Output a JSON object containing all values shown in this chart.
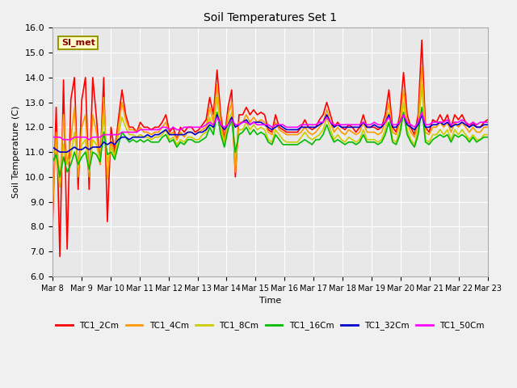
{
  "title": "Soil Temperatures Set 1",
  "xlabel": "Time",
  "ylabel": "Soil Temperature (C)",
  "ylim": [
    6.0,
    16.0
  ],
  "yticks": [
    6.0,
    7.0,
    8.0,
    9.0,
    10.0,
    11.0,
    12.0,
    13.0,
    14.0,
    15.0,
    16.0
  ],
  "xtick_labels": [
    "Mar 8",
    "Mar 9",
    "Mar 10",
    "Mar 11",
    "Mar 12",
    "Mar 13",
    "Mar 14",
    "Mar 15",
    "Mar 16",
    "Mar 17",
    "Mar 18",
    "Mar 19",
    "Mar 20",
    "Mar 21",
    "Mar 22",
    "Mar 23"
  ],
  "annotation": "SI_met",
  "bg_color": "#e8e8e8",
  "grid_color": "#ffffff",
  "colors": [
    "#ff0000",
    "#ff9900",
    "#cccc00",
    "#00bb00",
    "#0000cc",
    "#ff00ff"
  ],
  "series_names": [
    "TC1_2Cm",
    "TC1_4Cm",
    "TC1_8Cm",
    "TC1_16Cm",
    "TC1_32Cm",
    "TC1_50Cm"
  ],
  "lw": 1.2,
  "TC1_2Cm": [
    8.0,
    12.8,
    6.8,
    13.9,
    7.1,
    13.1,
    14.0,
    9.5,
    13.1,
    14.0,
    9.5,
    14.0,
    12.4,
    10.5,
    14.0,
    8.2,
    12.0,
    11.0,
    12.3,
    13.5,
    12.5,
    12.0,
    12.0,
    11.8,
    12.2,
    12.0,
    12.0,
    11.9,
    12.0,
    12.0,
    12.2,
    12.5,
    11.8,
    12.0,
    11.5,
    12.0,
    11.8,
    12.0,
    12.0,
    11.8,
    11.9,
    12.1,
    12.3,
    13.2,
    12.5,
    14.3,
    12.5,
    11.5,
    12.8,
    13.5,
    10.0,
    12.5,
    12.5,
    12.8,
    12.5,
    12.7,
    12.5,
    12.6,
    12.5,
    11.9,
    11.8,
    12.5,
    12.0,
    11.9,
    11.8,
    11.8,
    11.8,
    11.8,
    12.0,
    12.3,
    12.0,
    11.9,
    12.0,
    12.3,
    12.5,
    13.0,
    12.5,
    12.0,
    12.2,
    12.0,
    11.9,
    12.1,
    12.0,
    11.8,
    12.0,
    12.5,
    12.0,
    12.0,
    12.0,
    11.9,
    12.0,
    12.5,
    13.5,
    12.0,
    11.8,
    12.5,
    14.2,
    12.5,
    12.0,
    11.7,
    12.5,
    15.5,
    12.0,
    11.8,
    12.3,
    12.2,
    12.5,
    12.2,
    12.5,
    12.0,
    12.5,
    12.3,
    12.5,
    12.2,
    12.0,
    12.2,
    12.0,
    12.0,
    12.2,
    12.3
  ],
  "TC1_4Cm": [
    8.6,
    11.8,
    9.7,
    12.5,
    10.5,
    11.5,
    12.8,
    10.0,
    12.0,
    12.5,
    10.0,
    12.5,
    11.8,
    10.5,
    13.2,
    9.9,
    11.5,
    10.8,
    12.0,
    13.0,
    12.3,
    11.9,
    11.9,
    11.8,
    12.0,
    11.8,
    11.8,
    11.7,
    11.8,
    11.8,
    12.0,
    12.2,
    11.7,
    11.8,
    11.5,
    11.8,
    11.6,
    11.8,
    11.8,
    11.7,
    11.8,
    11.9,
    12.0,
    12.8,
    12.2,
    13.7,
    12.2,
    11.4,
    12.5,
    13.0,
    10.2,
    12.2,
    12.2,
    12.5,
    12.2,
    12.4,
    12.2,
    12.3,
    12.2,
    11.8,
    11.7,
    12.2,
    11.9,
    11.8,
    11.7,
    11.7,
    11.7,
    11.7,
    11.8,
    12.0,
    11.8,
    11.7,
    11.8,
    12.0,
    12.2,
    12.7,
    12.2,
    11.8,
    12.0,
    11.8,
    11.7,
    11.9,
    11.8,
    11.7,
    11.8,
    12.2,
    11.8,
    11.8,
    11.8,
    11.7,
    11.8,
    12.2,
    13.0,
    11.8,
    11.7,
    12.2,
    13.5,
    12.2,
    11.8,
    11.6,
    12.2,
    14.4,
    11.8,
    11.7,
    12.0,
    12.0,
    12.2,
    12.0,
    12.2,
    11.8,
    12.2,
    12.0,
    12.2,
    12.0,
    11.8,
    12.0,
    11.8,
    11.8,
    12.0,
    12.0
  ],
  "TC1_8Cm": [
    11.0,
    11.0,
    9.6,
    11.3,
    10.5,
    10.8,
    11.8,
    10.4,
    11.3,
    11.5,
    10.2,
    11.5,
    11.3,
    10.6,
    12.5,
    10.6,
    11.2,
    10.8,
    11.7,
    12.4,
    12.0,
    11.7,
    11.7,
    11.6,
    11.7,
    11.6,
    11.6,
    11.5,
    11.6,
    11.6,
    11.7,
    11.9,
    11.5,
    11.6,
    11.3,
    11.5,
    11.4,
    11.6,
    11.6,
    11.5,
    11.5,
    11.7,
    11.8,
    12.4,
    11.9,
    13.2,
    11.9,
    11.3,
    12.2,
    12.6,
    10.8,
    11.9,
    11.9,
    12.2,
    11.9,
    12.1,
    11.9,
    12.0,
    11.9,
    11.5,
    11.4,
    11.9,
    11.7,
    11.5,
    11.4,
    11.4,
    11.4,
    11.4,
    11.6,
    11.8,
    11.6,
    11.5,
    11.6,
    11.7,
    11.9,
    12.4,
    11.9,
    11.5,
    11.7,
    11.5,
    11.4,
    11.6,
    11.5,
    11.4,
    11.5,
    11.9,
    11.5,
    11.5,
    11.5,
    11.4,
    11.5,
    11.9,
    12.6,
    11.5,
    11.4,
    11.9,
    13.0,
    11.9,
    11.5,
    11.3,
    11.9,
    13.7,
    11.5,
    11.4,
    11.7,
    11.7,
    11.9,
    11.7,
    11.9,
    11.5,
    11.9,
    11.7,
    11.9,
    11.7,
    11.5,
    11.7,
    11.5,
    11.5,
    11.7,
    11.7
  ],
  "TC1_16Cm": [
    10.6,
    10.9,
    10.0,
    10.8,
    10.2,
    10.5,
    11.0,
    10.5,
    10.8,
    11.0,
    10.3,
    11.0,
    10.9,
    10.6,
    11.8,
    10.9,
    11.0,
    10.7,
    11.3,
    11.8,
    11.6,
    11.4,
    11.5,
    11.4,
    11.5,
    11.4,
    11.5,
    11.4,
    11.4,
    11.4,
    11.6,
    11.7,
    11.4,
    11.5,
    11.2,
    11.4,
    11.3,
    11.5,
    11.5,
    11.4,
    11.4,
    11.5,
    11.6,
    12.0,
    11.7,
    12.6,
    11.7,
    11.2,
    11.9,
    12.3,
    11.0,
    11.7,
    11.8,
    12.0,
    11.7,
    11.9,
    11.7,
    11.8,
    11.7,
    11.4,
    11.3,
    11.7,
    11.5,
    11.3,
    11.3,
    11.3,
    11.3,
    11.3,
    11.4,
    11.5,
    11.4,
    11.3,
    11.5,
    11.5,
    11.7,
    12.1,
    11.7,
    11.4,
    11.5,
    11.4,
    11.3,
    11.4,
    11.4,
    11.3,
    11.4,
    11.7,
    11.4,
    11.4,
    11.4,
    11.3,
    11.4,
    11.7,
    12.2,
    11.4,
    11.3,
    11.7,
    12.6,
    11.7,
    11.4,
    11.2,
    11.7,
    12.8,
    11.4,
    11.3,
    11.5,
    11.6,
    11.7,
    11.6,
    11.7,
    11.4,
    11.7,
    11.6,
    11.7,
    11.6,
    11.4,
    11.6,
    11.4,
    11.5,
    11.6,
    11.6
  ],
  "TC1_32Cm": [
    11.2,
    11.1,
    11.0,
    11.0,
    11.0,
    11.1,
    11.2,
    11.1,
    11.1,
    11.2,
    11.1,
    11.2,
    11.2,
    11.2,
    11.4,
    11.3,
    11.4,
    11.3,
    11.5,
    11.6,
    11.6,
    11.5,
    11.6,
    11.6,
    11.6,
    11.6,
    11.7,
    11.6,
    11.7,
    11.7,
    11.8,
    11.9,
    11.7,
    11.7,
    11.7,
    11.7,
    11.7,
    11.8,
    11.8,
    11.7,
    11.8,
    11.8,
    11.9,
    12.1,
    12.0,
    12.5,
    12.1,
    11.9,
    12.1,
    12.4,
    12.0,
    12.1,
    12.2,
    12.3,
    12.1,
    12.2,
    12.2,
    12.2,
    12.1,
    12.0,
    11.9,
    12.0,
    12.1,
    12.0,
    11.9,
    11.9,
    11.9,
    11.9,
    12.0,
    12.0,
    12.0,
    12.0,
    12.0,
    12.1,
    12.2,
    12.5,
    12.2,
    12.0,
    12.1,
    12.0,
    12.0,
    12.0,
    12.0,
    12.0,
    12.0,
    12.2,
    12.0,
    12.0,
    12.1,
    12.0,
    12.0,
    12.2,
    12.5,
    12.0,
    12.0,
    12.2,
    12.5,
    12.1,
    12.0,
    11.9,
    12.1,
    12.5,
    12.0,
    12.0,
    12.1,
    12.1,
    12.2,
    12.1,
    12.2,
    12.0,
    12.1,
    12.1,
    12.2,
    12.1,
    12.0,
    12.1,
    12.0,
    12.0,
    12.1,
    12.1
  ],
  "TC1_50Cm": [
    11.6,
    11.6,
    11.6,
    11.5,
    11.5,
    11.5,
    11.6,
    11.6,
    11.6,
    11.6,
    11.5,
    11.6,
    11.6,
    11.6,
    11.7,
    11.7,
    11.7,
    11.7,
    11.7,
    11.8,
    11.8,
    11.8,
    11.8,
    11.8,
    11.9,
    11.9,
    11.9,
    11.9,
    11.9,
    11.9,
    12.0,
    12.0,
    11.9,
    12.0,
    11.9,
    11.9,
    12.0,
    12.0,
    12.0,
    12.0,
    12.0,
    12.0,
    12.1,
    12.2,
    12.1,
    12.4,
    12.1,
    12.0,
    12.1,
    12.3,
    12.1,
    12.1,
    12.2,
    12.2,
    12.1,
    12.2,
    12.1,
    12.1,
    12.1,
    12.1,
    12.0,
    12.1,
    12.1,
    12.1,
    12.0,
    12.0,
    12.0,
    12.0,
    12.1,
    12.1,
    12.1,
    12.1,
    12.1,
    12.2,
    12.2,
    12.4,
    12.2,
    12.1,
    12.1,
    12.1,
    12.1,
    12.1,
    12.1,
    12.1,
    12.1,
    12.2,
    12.1,
    12.1,
    12.2,
    12.1,
    12.1,
    12.2,
    12.4,
    12.1,
    12.1,
    12.2,
    12.5,
    12.2,
    12.1,
    12.0,
    12.2,
    12.6,
    12.1,
    12.1,
    12.2,
    12.2,
    12.2,
    12.2,
    12.3,
    12.1,
    12.2,
    12.2,
    12.3,
    12.2,
    12.1,
    12.2,
    12.1,
    12.2,
    12.2,
    12.2
  ]
}
